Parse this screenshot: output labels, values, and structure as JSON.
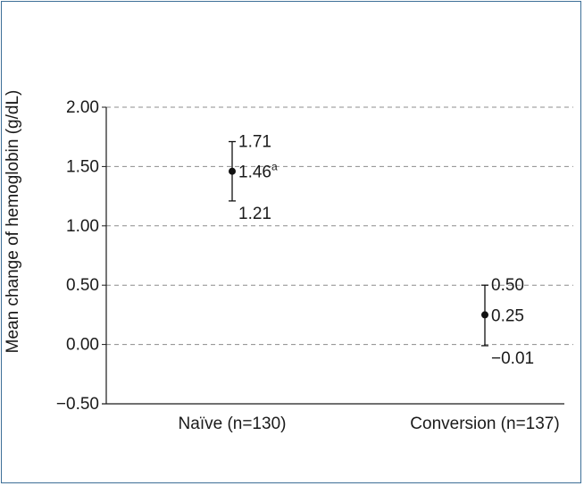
{
  "colors": {
    "frame": "#3d6f97",
    "grid": "#8c8c8c",
    "axis": "#1a1a1a",
    "marker": "#111111"
  },
  "chart_data": {
    "type": "scatter",
    "title": "",
    "xlabel": "",
    "ylabel": "Mean change of hemoglobin (g/dL)",
    "ylim": [
      -0.5,
      2.0
    ],
    "yticks": [
      2.0,
      1.5,
      1.0,
      0.5,
      0.0,
      -0.5
    ],
    "ytick_labels": [
      "2.00",
      "1.50",
      "1.00",
      "0.50",
      "0.00",
      "−0.50"
    ],
    "grid": true,
    "categories": [
      "Naïve (n=130)",
      "Conversion (n=137)"
    ],
    "points": [
      {
        "category": "Naïve (n=130)",
        "mean": 1.46,
        "lower": 1.21,
        "upper": 1.71,
        "mean_label": "1.46",
        "mean_superscript": "a",
        "lower_label": "1.21",
        "upper_label": "1.71"
      },
      {
        "category": "Conversion (n=137)",
        "mean": 0.25,
        "lower": -0.01,
        "upper": 0.5,
        "mean_label": "0.25",
        "mean_superscript": "",
        "lower_label": "−0.01",
        "upper_label": "0.50"
      }
    ]
  }
}
